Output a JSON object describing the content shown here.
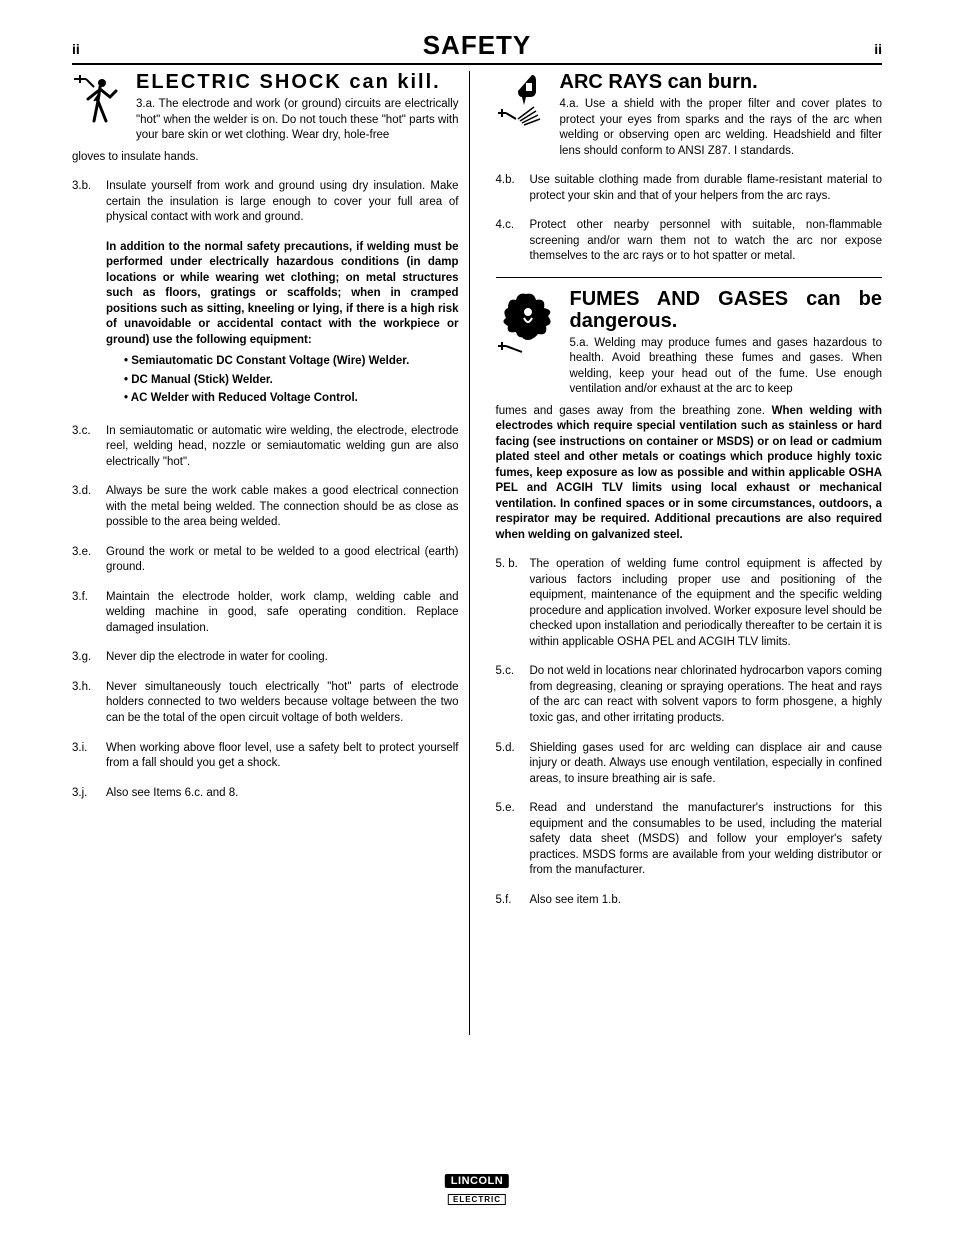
{
  "header": {
    "page_num_left": "ii",
    "title": "SAFETY",
    "page_num_right": "ii"
  },
  "left_col": {
    "s3": {
      "title": "ELECTRIC SHOCK can kill.",
      "first_num": "3.a.",
      "first": "The electrode and work (or ground) circuits are electrically \"hot\" when the welder is on. Do not touch these \"hot\" parts with your bare skin or wet clothing. Wear dry, hole-free",
      "first_cont": "gloves to insulate hands.",
      "items": [
        {
          "n": "3.b.",
          "t": "Insulate yourself from work and ground using dry insulation. Make certain the insulation is large enough to cover your full area of physical contact with work and ground."
        },
        {
          "n": "",
          "t_bold": "In addition to the normal safety precautions, if welding must be performed under electrically hazardous conditions (in damp locations or while wearing wet clothing; on metal structures such as floors, gratings or scaffolds; when in cramped positions such as sitting, kneeling or lying, if there is a high risk of unavoidable or accidental contact with the workpiece or ground) use the following equipment:",
          "bullets": [
            "Semiautomatic DC Constant Voltage (Wire) Welder.",
            "DC Manual (Stick) Welder.",
            "AC Welder with Reduced Voltage Control."
          ]
        },
        {
          "n": "3.c.",
          "t": "In semiautomatic or automatic wire welding, the electrode, electrode reel, welding head, nozzle or semiautomatic welding gun are also electrically \"hot\"."
        },
        {
          "n": "3.d.",
          "t": "Always be sure the work cable makes a good electrical connection with the metal being welded. The connection should be as close as possible to the area being welded."
        },
        {
          "n": "3.e.",
          "t": "Ground the work or metal to be welded to a good electrical (earth) ground."
        },
        {
          "n": "3.f.",
          "t": "Maintain the electrode holder, work clamp, welding cable  and welding machine in good, safe operating condition. Replace damaged insulation."
        },
        {
          "n": "3.g.",
          "t": "Never dip the electrode in water for cooling."
        },
        {
          "n": "3.h.",
          "t": "Never simultaneously touch electrically \"hot\" parts of electrode holders connected to two welders because voltage between the two can be the total of the open circuit voltage of both welders."
        },
        {
          "n": "3.i.",
          "t": "When working above floor level, use a safety belt to protect yourself from a fall should you get a shock."
        },
        {
          "n": "3.j.",
          "t": "Also see Items 6.c. and 8."
        }
      ]
    }
  },
  "right_col": {
    "s4": {
      "title": "ARC RAYS can burn.",
      "first_num": "4.a.",
      "first": "Use a shield with the proper filter and cover plates to protect your eyes from sparks and the rays of the arc when welding or observing open arc welding. Headshield and filter lens should conform to ANSI Z87. I standards.",
      "items": [
        {
          "n": "4.b.",
          "t": "Use suitable clothing made from durable flame-resistant material to protect your skin and that of your helpers from the arc rays."
        },
        {
          "n": "4.c.",
          "t": "Protect other nearby personnel with suitable, non-flammable screening and/or warn them not to watch the arc nor expose themselves to the arc rays or to hot spatter or metal."
        }
      ]
    },
    "s5": {
      "title": "FUMES AND GASES can be dangerous.",
      "first_num": "5.a.",
      "first": "Welding may produce fumes and gases hazardous to health. Avoid breathing these fumes and gases. When welding, keep your head out of the fume. Use enough ventilation and/or exhaust at the arc to keep",
      "first_cont_pre": "fumes and gases away from the breathing zone. ",
      "first_cont_bold": "When welding with electrodes which require special ventilation such as stainless or hard facing (see instructions on container or MSDS) or on lead or cadmium plated steel and other metals or coatings which produce highly toxic fumes, keep exposure as low as possible and within applicable OSHA PEL and ACGIH TLV limits using local exhaust or mechanical ventilation. In confined spaces or in some circumstances, outdoors, a respirator may be required. Additional precautions are also required when welding on galvanized  steel.",
      "items": [
        {
          "n": "5. b.",
          "t": "The operation of welding fume control equipment is affected by various factors including proper use and positioning of the equipment, maintenance of the equipment and the specific welding procedure and application involved.  Worker exposure level should be checked upon installation and periodically thereafter to be certain it is within applicable OSHA PEL and ACGIH TLV limits."
        },
        {
          "n": "5.c.",
          "t": "Do not weld in locations near chlorinated hydrocarbon vapors coming from degreasing, cleaning or spraying operations. The heat and rays of the arc can react with solvent vapors to form phosgene, a highly toxic gas, and other irritating products."
        },
        {
          "n": "5.d.",
          "t": "Shielding gases used for arc welding can displace air and cause injury or death. Always use enough ventilation, especially in confined areas, to insure breathing air is safe."
        },
        {
          "n": "5.e.",
          "t": "Read and understand the manufacturer's instructions for this equipment and the consumables to be used, including the material safety data sheet (MSDS) and follow your employer's safety practices. MSDS forms are available from your welding distributor or from the manufacturer."
        },
        {
          "n": "5.f.",
          "t": "Also see item 1.b."
        }
      ]
    }
  },
  "footer": {
    "brand_top": "LINCOLN",
    "brand_bot": "ELECTRIC"
  }
}
